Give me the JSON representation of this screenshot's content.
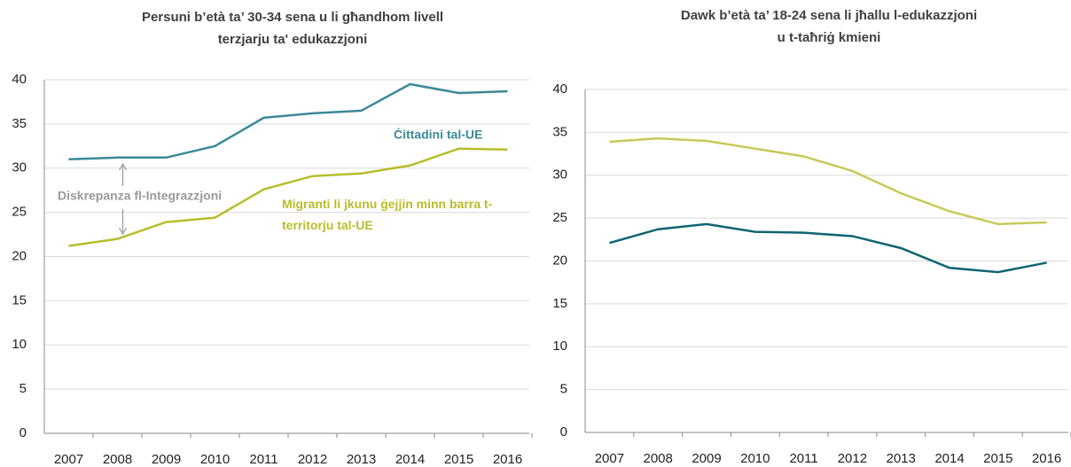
{
  "chart_data": [
    {
      "type": "line",
      "title": [
        "Persuni b’età ta’ 30-34 sena u li għandhom livell",
        "terzjarju ta' edukazzjoni"
      ],
      "categories": [
        "2007",
        "2008",
        "2009",
        "2010",
        "2011",
        "2012",
        "2013",
        "2014",
        "2015",
        "2016"
      ],
      "series": [
        {
          "name": "Ċittadini tal-UE",
          "color": "#3a8a96",
          "values": [
            31.0,
            31.2,
            31.2,
            32.5,
            35.7,
            36.2,
            36.5,
            39.5,
            38.5,
            38.7
          ]
        },
        {
          "name": "Migranti li jkunu ġejjin minn barra t-territorju tal-UE",
          "color": "#b8bd2a",
          "values": [
            21.2,
            22.0,
            23.9,
            24.4,
            27.6,
            29.1,
            29.4,
            30.3,
            32.2,
            32.1
          ]
        }
      ],
      "annotations": [
        "Diskrepanza fl-Integrazzjoni"
      ],
      "ylim": [
        0,
        40
      ],
      "yticks": [
        0,
        5,
        10,
        15,
        20,
        25,
        30,
        35,
        40
      ],
      "grid": true
    },
    {
      "type": "line",
      "title": [
        "Dawk b’età ta’ 18-24 sena li jħallu l-edukazzjoni",
        "u t-taħriġ kmieni"
      ],
      "categories": [
        "2007",
        "2008",
        "2009",
        "2010",
        "2011",
        "2012",
        "2013",
        "2014",
        "2015",
        "2016"
      ],
      "series": [
        {
          "color": "#c9c95a",
          "values": [
            33.9,
            34.3,
            34.0,
            33.1,
            32.2,
            30.5,
            27.9,
            25.8,
            24.3,
            24.5
          ]
        },
        {
          "color": "#0f6472",
          "values": [
            22.1,
            23.7,
            24.3,
            23.4,
            23.3,
            22.9,
            21.5,
            19.2,
            18.7,
            19.8
          ]
        }
      ],
      "ylim": [
        0,
        40
      ],
      "yticks": [
        0,
        5,
        10,
        15,
        20,
        25,
        30,
        35,
        40
      ],
      "grid": true
    }
  ]
}
